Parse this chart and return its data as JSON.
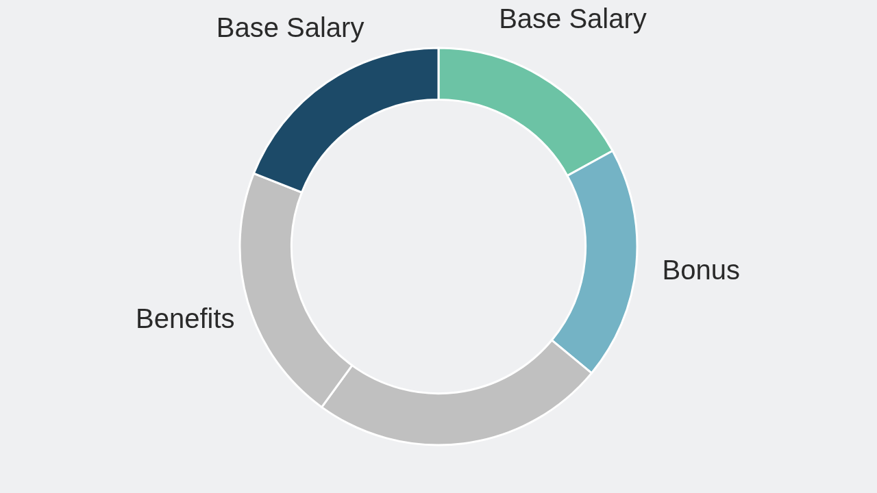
{
  "chart_data": {
    "type": "donut",
    "categories": [
      "Base Salary",
      "Bonus",
      null,
      "Benefits",
      "Base Salary"
    ],
    "values": [
      17,
      19,
      24,
      21,
      19
    ],
    "colors": [
      "#6cc3a5",
      "#74b3c5",
      "#c0c0c0",
      "#c0c0c0",
      "#1c4a68"
    ]
  }
}
